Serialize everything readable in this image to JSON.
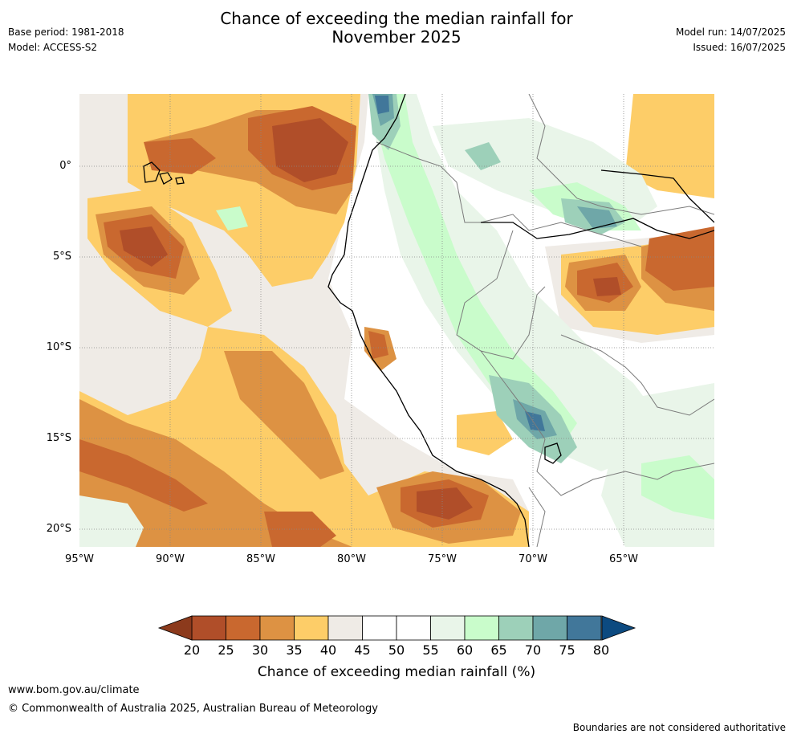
{
  "header": {
    "title_line1": "Chance of exceeding the median rainfall for",
    "title_line2": "November 2025",
    "base_period": "Base period: 1981-2018",
    "model": "Model: ACCESS-S2",
    "model_run": "Model run: 14/07/2025",
    "issued": "Issued: 16/07/2025"
  },
  "map": {
    "lat_labels": [
      "0°",
      "5°S",
      "10°S",
      "15°S",
      "20°S"
    ],
    "lon_labels": [
      "95°W",
      "90°W",
      "85°W",
      "80°W",
      "75°W",
      "70°W",
      "65°W"
    ],
    "extent": {
      "lon_min": -95,
      "lon_max": -60,
      "lat_min": -21,
      "lat_max": 4
    }
  },
  "colorbar": {
    "title": "Chance of exceeding median rainfall (%)",
    "ticks": [
      "20",
      "25",
      "30",
      "35",
      "40",
      "45",
      "50",
      "55",
      "60",
      "65",
      "70",
      "75",
      "80"
    ],
    "under_color": "#8c3a1c",
    "over_color": "#0c4a80",
    "colors": [
      "#b04e29",
      "#c9682f",
      "#dd9243",
      "#fdcd68",
      "#efebe6",
      "#ffffff",
      "#ffffff",
      "#e9f5e9",
      "#c9fccb",
      "#9dd0b9",
      "#6fa7a8",
      "#41779a"
    ]
  },
  "footer": {
    "url": "www.bom.gov.au/climate",
    "copyright": "© Commonwealth of Australia 2025, Australian Bureau of Meteorology",
    "disclaimer": "Boundaries are not considered authoritative"
  }
}
